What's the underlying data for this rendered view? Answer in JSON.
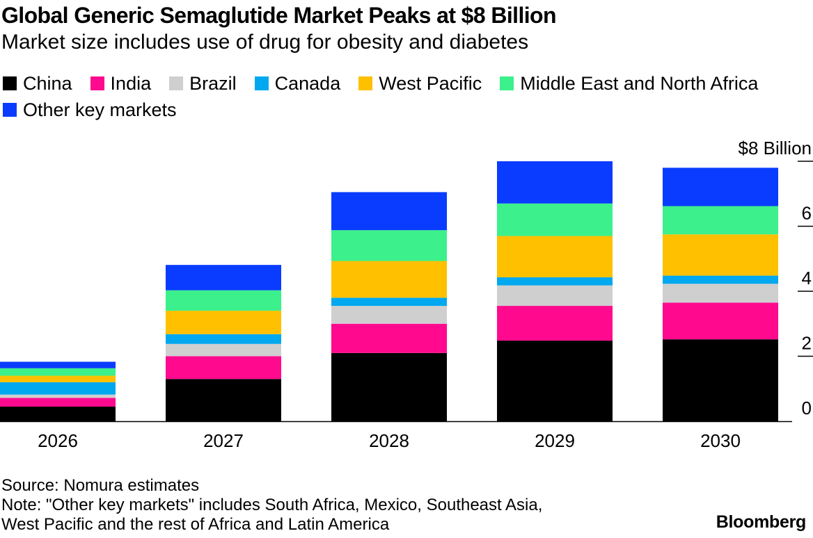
{
  "chart_data": {
    "type": "bar",
    "stacked": true,
    "title": "Global Generic Semaglutide Market Peaks at $8 Billion",
    "subtitle": "Market size includes use of drug for obesity and diabetes",
    "categories": [
      "2026",
      "2027",
      "2028",
      "2029",
      "2030"
    ],
    "series": [
      {
        "name": "China",
        "color": "#000000",
        "values": [
          0.45,
          1.3,
          2.1,
          2.48,
          2.52
        ]
      },
      {
        "name": "India",
        "color": "#ff0a8f",
        "values": [
          0.27,
          0.7,
          0.9,
          1.07,
          1.13
        ]
      },
      {
        "name": "Brazil",
        "color": "#cfcfcf",
        "values": [
          0.1,
          0.38,
          0.55,
          0.63,
          0.58
        ]
      },
      {
        "name": "Canada",
        "color": "#00a8f0",
        "values": [
          0.38,
          0.3,
          0.25,
          0.25,
          0.25
        ]
      },
      {
        "name": "West Pacific",
        "color": "#ffc000",
        "values": [
          0.2,
          0.72,
          1.13,
          1.27,
          1.27
        ]
      },
      {
        "name": "Middle East and North Africa",
        "color": "#3cf08c",
        "values": [
          0.23,
          0.63,
          0.95,
          1.0,
          0.87
        ]
      },
      {
        "name": "Other key markets",
        "color": "#0a3cff",
        "values": [
          0.2,
          0.78,
          1.17,
          1.3,
          1.18
        ]
      }
    ],
    "y_ticks": [
      "0",
      "2",
      "4",
      "6",
      "$8 Billion"
    ],
    "ylim": [
      0,
      8
    ],
    "grid": false,
    "legend_position": "top-left"
  },
  "footer": {
    "source": "Source: Nomura estimates",
    "note_line1": "Note: \"Other key markets\" includes South Africa, Mexico, Southeast Asia,",
    "note_line2": "West Pacific and the rest of Africa and Latin America",
    "brand": "Bloomberg"
  }
}
